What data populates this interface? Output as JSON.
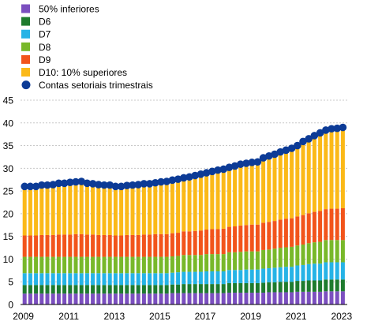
{
  "chart_data": {
    "type": "bar",
    "stacked": true,
    "title": "",
    "xlabel": "",
    "ylabel": "",
    "ylim": [
      0,
      45
    ],
    "yticks": [
      0,
      5,
      10,
      15,
      20,
      25,
      30,
      35,
      40,
      45
    ],
    "xtick_labels": [
      "2009",
      "2011",
      "2013",
      "2015",
      "2017",
      "2019",
      "2021",
      "2023"
    ],
    "grid": "horizontal",
    "legend_position": "top-left",
    "periods_start": "2009Q1",
    "periods_end": "2023Q1",
    "series": [
      {
        "name": "50% inferiores",
        "color": "#7b4fbf",
        "values": [
          2.4,
          2.4,
          2.4,
          2.4,
          2.4,
          2.4,
          2.4,
          2.4,
          2.4,
          2.4,
          2.4,
          2.4,
          2.4,
          2.4,
          2.4,
          2.4,
          2.4,
          2.4,
          2.4,
          2.4,
          2.4,
          2.4,
          2.4,
          2.4,
          2.4,
          2.4,
          2.5,
          2.5,
          2.5,
          2.5,
          2.5,
          2.5,
          2.5,
          2.5,
          2.5,
          2.5,
          2.6,
          2.6,
          2.6,
          2.6,
          2.6,
          2.6,
          2.6,
          2.7,
          2.7,
          2.7,
          2.7,
          2.7,
          2.8,
          2.8,
          2.8,
          2.8,
          2.8,
          2.9,
          2.9,
          2.9,
          2.9
        ]
      },
      {
        "name": "D6",
        "color": "#1e7b2e",
        "values": [
          1.9,
          1.9,
          1.9,
          1.9,
          1.9,
          1.9,
          1.9,
          1.9,
          1.9,
          1.9,
          1.9,
          1.9,
          1.9,
          1.9,
          1.9,
          1.9,
          1.9,
          1.9,
          1.9,
          1.9,
          1.9,
          1.9,
          1.9,
          1.9,
          1.9,
          1.9,
          1.9,
          1.9,
          2.0,
          2.0,
          2.0,
          2.0,
          2.0,
          2.0,
          2.0,
          2.0,
          2.1,
          2.1,
          2.1,
          2.1,
          2.1,
          2.1,
          2.2,
          2.2,
          2.2,
          2.3,
          2.3,
          2.3,
          2.4,
          2.4,
          2.5,
          2.5,
          2.5,
          2.6,
          2.6,
          2.6,
          2.6
        ]
      },
      {
        "name": "D7",
        "color": "#26b3e6",
        "values": [
          2.6,
          2.6,
          2.6,
          2.6,
          2.6,
          2.6,
          2.6,
          2.6,
          2.6,
          2.6,
          2.6,
          2.6,
          2.6,
          2.6,
          2.6,
          2.6,
          2.6,
          2.6,
          2.6,
          2.6,
          2.6,
          2.6,
          2.6,
          2.6,
          2.6,
          2.6,
          2.6,
          2.7,
          2.7,
          2.7,
          2.7,
          2.7,
          2.8,
          2.8,
          2.8,
          2.8,
          2.9,
          2.9,
          2.9,
          3.0,
          3.0,
          3.0,
          3.1,
          3.1,
          3.2,
          3.2,
          3.3,
          3.3,
          3.4,
          3.5,
          3.6,
          3.7,
          3.7,
          3.8,
          3.8,
          3.8,
          3.8
        ]
      },
      {
        "name": "D8",
        "color": "#78b82a",
        "values": [
          3.6,
          3.6,
          3.6,
          3.6,
          3.6,
          3.6,
          3.6,
          3.6,
          3.6,
          3.6,
          3.6,
          3.6,
          3.6,
          3.6,
          3.6,
          3.6,
          3.6,
          3.6,
          3.6,
          3.6,
          3.6,
          3.6,
          3.6,
          3.6,
          3.6,
          3.6,
          3.6,
          3.6,
          3.7,
          3.7,
          3.7,
          3.7,
          3.8,
          3.8,
          3.8,
          3.8,
          3.9,
          3.9,
          4.0,
          4.0,
          4.0,
          4.0,
          4.1,
          4.1,
          4.2,
          4.3,
          4.3,
          4.4,
          4.4,
          4.5,
          4.6,
          4.7,
          4.8,
          4.9,
          4.9,
          4.9,
          4.9
        ]
      },
      {
        "name": "D9",
        "color": "#f2541b",
        "values": [
          4.7,
          4.7,
          4.7,
          4.8,
          4.8,
          4.8,
          4.9,
          4.9,
          4.9,
          5.0,
          5.0,
          4.9,
          4.9,
          4.8,
          4.8,
          4.8,
          4.7,
          4.7,
          4.8,
          4.8,
          4.8,
          4.9,
          4.9,
          5.0,
          5.0,
          5.0,
          5.1,
          5.1,
          5.2,
          5.2,
          5.3,
          5.4,
          5.4,
          5.5,
          5.5,
          5.6,
          5.6,
          5.7,
          5.8,
          5.8,
          5.9,
          5.9,
          6.0,
          6.1,
          6.1,
          6.2,
          6.3,
          6.3,
          6.4,
          6.5,
          6.6,
          6.7,
          6.8,
          6.8,
          6.9,
          6.9,
          7.0
        ]
      },
      {
        "name": "D10: 10% superiores",
        "color": "#fbb918",
        "values": [
          10.8,
          10.8,
          10.8,
          11.0,
          11.0,
          11.1,
          11.3,
          11.3,
          11.5,
          11.5,
          11.6,
          11.3,
          11.2,
          11.1,
          11.0,
          11.0,
          10.8,
          10.8,
          10.9,
          11.0,
          11.1,
          11.2,
          11.2,
          11.3,
          11.5,
          11.6,
          11.7,
          11.8,
          11.8,
          12.0,
          12.2,
          12.4,
          12.5,
          12.7,
          12.9,
          13.0,
          13.1,
          13.3,
          13.5,
          13.6,
          13.7,
          13.8,
          14.1,
          14.2,
          14.4,
          14.6,
          14.8,
          15.1,
          15.4,
          15.9,
          16.2,
          16.5,
          16.8,
          17.2,
          17.6,
          17.7,
          17.8
        ]
      },
      {
        "name": "Contas setoriais trimestrais",
        "color": "#0c3b96",
        "kind": "dots",
        "values": [
          26.0,
          26.0,
          26.0,
          26.3,
          26.3,
          26.4,
          26.7,
          26.7,
          26.9,
          27.0,
          27.1,
          26.7,
          26.6,
          26.4,
          26.3,
          26.3,
          26.0,
          26.0,
          26.2,
          26.3,
          26.4,
          26.6,
          26.6,
          26.8,
          27.0,
          27.1,
          27.4,
          27.6,
          27.9,
          28.1,
          28.4,
          28.7,
          29.0,
          29.3,
          29.6,
          29.8,
          30.2,
          30.5,
          30.9,
          31.1,
          31.3,
          31.4,
          32.3,
          32.7,
          33.1,
          33.6,
          34.0,
          34.4,
          35.0,
          35.9,
          36.5,
          37.2,
          37.8,
          38.4,
          38.7,
          38.8,
          39.0
        ]
      }
    ]
  }
}
